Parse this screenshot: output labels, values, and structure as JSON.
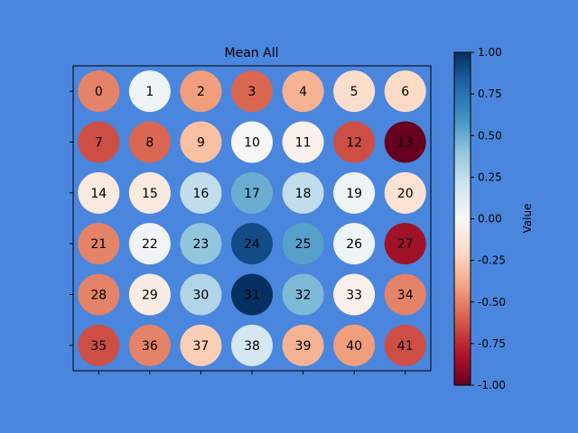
{
  "chart_data": {
    "type": "heatmap",
    "title": "Mean All",
    "rows": 6,
    "cols": 7,
    "labels": [
      "0",
      "1",
      "2",
      "3",
      "4",
      "5",
      "6",
      "7",
      "8",
      "9",
      "10",
      "11",
      "12",
      "13",
      "14",
      "15",
      "16",
      "17",
      "18",
      "19",
      "20",
      "21",
      "22",
      "23",
      "24",
      "25",
      "26",
      "27",
      "28",
      "29",
      "30",
      "31",
      "32",
      "33",
      "34",
      "35",
      "36",
      "37",
      "38",
      "39",
      "40",
      "41"
    ],
    "values": [
      -0.5,
      0.05,
      -0.42,
      -0.58,
      -0.35,
      -0.18,
      -0.2,
      -0.65,
      -0.58,
      -0.3,
      0.0,
      -0.05,
      -0.65,
      -1.0,
      -0.1,
      -0.1,
      0.25,
      0.5,
      0.25,
      0.05,
      -0.15,
      -0.5,
      0.03,
      0.4,
      0.9,
      0.55,
      0.05,
      -0.85,
      -0.5,
      -0.08,
      0.3,
      1.0,
      0.45,
      -0.05,
      -0.5,
      -0.65,
      -0.5,
      -0.25,
      0.18,
      -0.35,
      -0.42,
      -0.65
    ],
    "colorbar": {
      "label": "Value",
      "min": -1.0,
      "max": 1.0,
      "ticks": [
        "-1.00",
        "-0.75",
        "-0.50",
        "-0.25",
        "0.00",
        "0.25",
        "0.50",
        "0.75",
        "1.00"
      ],
      "colormap": "RdBu"
    },
    "colors": {
      "background": "#4a86dd",
      "plot_background": "#4a86dd"
    }
  }
}
